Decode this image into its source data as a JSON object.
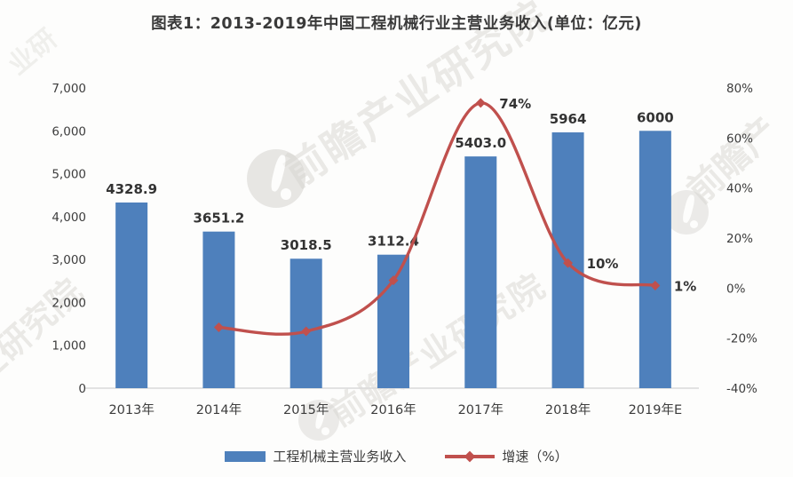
{
  "title": "图表1：2013-2019年中国工程机械行业主营业务收入(单位：亿元)",
  "watermark": {
    "brand": "前瞻产业研究院",
    "partial_bottom": "前瞻产业研究院",
    "partial_left": "业研究院",
    "partial_right": "前瞻产",
    "partial_top_left": "业研",
    "color": "#d8d6d1"
  },
  "legend": [
    {
      "label": "工程机械主营业务收入",
      "color": "#4e80bc",
      "type": "bar"
    },
    {
      "label": "增速（%）",
      "color": "#c0504d",
      "type": "line"
    }
  ],
  "chart_data": {
    "type": "bar",
    "combo": "bar+line",
    "title": "图表1：2013-2019年中国工程机械行业主营业务收入(单位：亿元)",
    "categories": [
      "2013年",
      "2014年",
      "2015年",
      "2016年",
      "2017年",
      "2018年",
      "2019年E"
    ],
    "series": [
      {
        "name": "工程机械主营业务收入",
        "type": "bar",
        "axis": "left",
        "color": "#4e80bc",
        "values": [
          4328.9,
          3651.2,
          3018.5,
          3112.4,
          5403.0,
          5964,
          6000
        ],
        "value_labels": [
          "4328.9",
          "3651.2",
          "3018.5",
          "3112.4",
          "5403.0",
          "5964",
          "6000"
        ]
      },
      {
        "name": "增速（%）",
        "type": "line",
        "axis": "right",
        "color": "#c0504d",
        "values": [
          null,
          -15.7,
          -17.3,
          3.1,
          74,
          10,
          1
        ],
        "value_labels": [
          null,
          null,
          null,
          null,
          "74%",
          "10%",
          "1%"
        ]
      }
    ],
    "left_axis": {
      "min": 0,
      "max": 7000,
      "step": 1000,
      "ticks": [
        0,
        1000,
        2000,
        3000,
        4000,
        5000,
        6000,
        7000
      ],
      "tick_labels": [
        "0",
        "1,000",
        "2,000",
        "3,000",
        "4,000",
        "5,000",
        "6,000",
        "7,000"
      ]
    },
    "right_axis": {
      "min": -40,
      "max": 80,
      "step": 20,
      "ticks": [
        -40,
        -20,
        0,
        20,
        40,
        60,
        80
      ],
      "tick_labels": [
        "-40%",
        "-20%",
        "0%",
        "20%",
        "40%",
        "60%",
        "80%"
      ]
    },
    "grid": false,
    "legend_position": "bottom"
  }
}
